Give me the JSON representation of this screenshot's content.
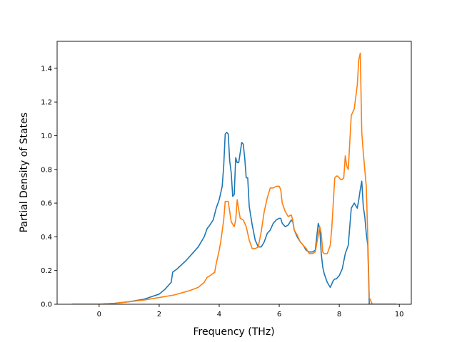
{
  "chart_data": {
    "type": "line",
    "xlabel": "Frequency (THz)",
    "ylabel": "Partial Density of States",
    "xlim": [
      -1.4,
      10.4
    ],
    "ylim": [
      0.0,
      1.56
    ],
    "xticks": [
      0,
      2,
      4,
      6,
      8,
      10
    ],
    "yticks": [
      0.0,
      0.2,
      0.4,
      0.6,
      0.8,
      1.0,
      1.2,
      1.4
    ],
    "grid": false,
    "colors": [
      "#1f77b4",
      "#ff7f0e"
    ],
    "series": [
      {
        "color": "#1f77b4",
        "x": [
          -0.9,
          0.0,
          0.5,
          1.0,
          1.5,
          2.0,
          2.2,
          2.4,
          2.45,
          2.6,
          2.9,
          3.1,
          3.3,
          3.5,
          3.6,
          3.65,
          3.8,
          3.9,
          4.0,
          4.1,
          4.15,
          4.2,
          4.25,
          4.3,
          4.35,
          4.4,
          4.45,
          4.5,
          4.55,
          4.6,
          4.65,
          4.7,
          4.75,
          4.8,
          4.85,
          4.9,
          4.95,
          5.0,
          5.1,
          5.2,
          5.3,
          5.4,
          5.5,
          5.6,
          5.7,
          5.8,
          5.9,
          6.0,
          6.05,
          6.1,
          6.2,
          6.3,
          6.4,
          6.45,
          6.5,
          6.6,
          6.7,
          6.8,
          6.9,
          7.0,
          7.1,
          7.2,
          7.3,
          7.35,
          7.4,
          7.45,
          7.5,
          7.6,
          7.7,
          7.8,
          7.85,
          7.9,
          8.0,
          8.1,
          8.2,
          8.3,
          8.4,
          8.5,
          8.6,
          8.65,
          8.7,
          8.75,
          8.8,
          8.85,
          8.9,
          8.95,
          9.0,
          9.1,
          9.5,
          9.9
        ],
        "y": [
          0.0,
          0.0,
          0.005,
          0.015,
          0.03,
          0.06,
          0.09,
          0.13,
          0.19,
          0.21,
          0.26,
          0.3,
          0.34,
          0.4,
          0.45,
          0.46,
          0.5,
          0.57,
          0.62,
          0.7,
          0.82,
          1.01,
          1.02,
          1.01,
          0.85,
          0.78,
          0.64,
          0.65,
          0.87,
          0.84,
          0.84,
          0.9,
          0.96,
          0.95,
          0.87,
          0.75,
          0.75,
          0.58,
          0.47,
          0.38,
          0.34,
          0.34,
          0.37,
          0.42,
          0.44,
          0.48,
          0.5,
          0.51,
          0.51,
          0.48,
          0.46,
          0.47,
          0.5,
          0.49,
          0.44,
          0.4,
          0.37,
          0.35,
          0.32,
          0.31,
          0.31,
          0.32,
          0.48,
          0.45,
          0.3,
          0.22,
          0.18,
          0.13,
          0.1,
          0.14,
          0.15,
          0.15,
          0.17,
          0.21,
          0.3,
          0.35,
          0.57,
          0.6,
          0.57,
          0.62,
          0.68,
          0.73,
          0.58,
          0.52,
          0.42,
          0.35,
          0.0,
          0.0,
          0.0,
          0.0
        ]
      },
      {
        "color": "#ff7f0e",
        "x": [
          -0.9,
          0.0,
          0.5,
          1.0,
          1.5,
          2.0,
          2.5,
          3.0,
          3.3,
          3.5,
          3.6,
          3.7,
          3.85,
          3.9,
          4.0,
          4.05,
          4.15,
          4.2,
          4.3,
          4.35,
          4.4,
          4.5,
          4.55,
          4.6,
          4.65,
          4.7,
          4.8,
          4.9,
          5.0,
          5.1,
          5.2,
          5.3,
          5.4,
          5.5,
          5.6,
          5.7,
          5.8,
          5.9,
          6.0,
          6.05,
          6.1,
          6.2,
          6.3,
          6.4,
          6.45,
          6.5,
          6.6,
          6.7,
          6.8,
          6.9,
          7.0,
          7.1,
          7.2,
          7.3,
          7.35,
          7.4,
          7.45,
          7.5,
          7.6,
          7.7,
          7.75,
          7.8,
          7.85,
          7.9,
          7.95,
          8.0,
          8.05,
          8.1,
          8.15,
          8.2,
          8.25,
          8.3,
          8.4,
          8.5,
          8.6,
          8.65,
          8.7,
          8.75,
          8.8,
          8.9,
          8.95,
          9.0,
          9.1,
          9.5,
          9.9
        ],
        "y": [
          0.0,
          0.0,
          0.005,
          0.015,
          0.025,
          0.04,
          0.055,
          0.08,
          0.1,
          0.13,
          0.16,
          0.17,
          0.19,
          0.24,
          0.32,
          0.37,
          0.5,
          0.61,
          0.61,
          0.55,
          0.49,
          0.46,
          0.5,
          0.62,
          0.56,
          0.51,
          0.5,
          0.46,
          0.38,
          0.33,
          0.33,
          0.34,
          0.43,
          0.55,
          0.63,
          0.69,
          0.69,
          0.7,
          0.7,
          0.68,
          0.6,
          0.55,
          0.52,
          0.53,
          0.5,
          0.44,
          0.41,
          0.37,
          0.35,
          0.33,
          0.3,
          0.3,
          0.31,
          0.41,
          0.46,
          0.42,
          0.31,
          0.3,
          0.3,
          0.35,
          0.45,
          0.6,
          0.75,
          0.76,
          0.76,
          0.75,
          0.74,
          0.74,
          0.75,
          0.88,
          0.82,
          0.8,
          1.12,
          1.16,
          1.3,
          1.45,
          1.49,
          1.02,
          0.9,
          0.7,
          0.4,
          0.04,
          0.0,
          0.0,
          0.0
        ]
      }
    ]
  }
}
